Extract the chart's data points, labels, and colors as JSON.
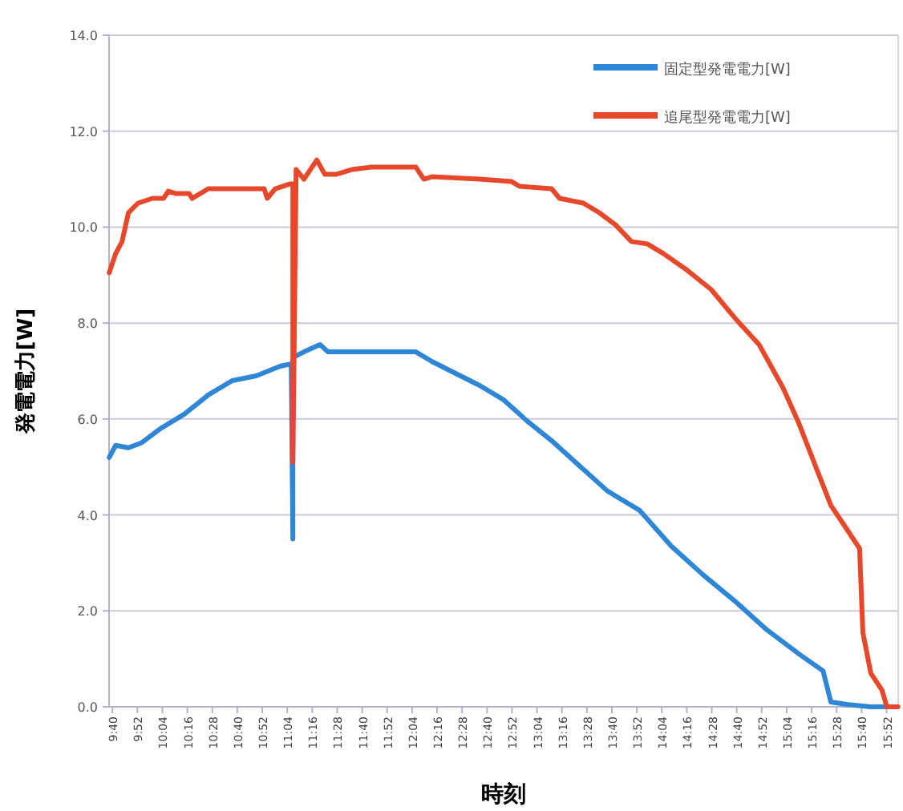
{
  "chart_data": {
    "type": "line",
    "xlabel": "時刻",
    "ylabel": "発電電力[W]",
    "legend": "top right",
    "grid": "y",
    "line_style": "solid",
    "xlim": [
      9.64,
      15.96
    ],
    "ylim": [
      0,
      14
    ],
    "yticks": [
      {
        "value": 0,
        "label": "0.0"
      },
      {
        "value": 2,
        "label": "2.0"
      },
      {
        "value": 4,
        "label": "4.0"
      },
      {
        "value": 6,
        "label": "6.0"
      },
      {
        "value": 8,
        "label": "8.0"
      },
      {
        "value": 10,
        "label": "10.0"
      },
      {
        "value": 12,
        "label": "12.0"
      },
      {
        "value": 14,
        "label": "14.0"
      }
    ],
    "xticks": [
      {
        "value": 9.667,
        "label": "9:40"
      },
      {
        "value": 9.867,
        "label": "9:52"
      },
      {
        "value": 10.067,
        "label": "10:04"
      },
      {
        "value": 10.267,
        "label": "10:16"
      },
      {
        "value": 10.467,
        "label": "10:28"
      },
      {
        "value": 10.667,
        "label": "10:40"
      },
      {
        "value": 10.867,
        "label": "10:52"
      },
      {
        "value": 11.067,
        "label": "11:04"
      },
      {
        "value": 11.267,
        "label": "11:16"
      },
      {
        "value": 11.467,
        "label": "11:28"
      },
      {
        "value": 11.667,
        "label": "11:40"
      },
      {
        "value": 11.867,
        "label": "11:52"
      },
      {
        "value": 12.067,
        "label": "12:04"
      },
      {
        "value": 12.267,
        "label": "12:16"
      },
      {
        "value": 12.467,
        "label": "12:28"
      },
      {
        "value": 12.667,
        "label": "12:40"
      },
      {
        "value": 12.867,
        "label": "12:52"
      },
      {
        "value": 13.067,
        "label": "13:04"
      },
      {
        "value": 13.267,
        "label": "13:16"
      },
      {
        "value": 13.467,
        "label": "13:28"
      },
      {
        "value": 13.667,
        "label": "13:40"
      },
      {
        "value": 13.867,
        "label": "13:52"
      },
      {
        "value": 14.067,
        "label": "14:04"
      },
      {
        "value": 14.267,
        "label": "14:16"
      },
      {
        "value": 14.467,
        "label": "14:28"
      },
      {
        "value": 14.667,
        "label": "14:40"
      },
      {
        "value": 14.867,
        "label": "14:52"
      },
      {
        "value": 15.067,
        "label": "15:04"
      },
      {
        "value": 15.267,
        "label": "15:16"
      },
      {
        "value": 15.467,
        "label": "15:28"
      },
      {
        "value": 15.667,
        "label": "15:40"
      },
      {
        "value": 15.867,
        "label": "15:52"
      }
    ],
    "series": [
      {
        "name": "固定型発電電力[W]",
        "color": "#2e86d6",
        "x": [
          9.641,
          9.693,
          9.795,
          9.897,
          10.051,
          10.242,
          10.434,
          10.626,
          10.818,
          11.01,
          11.099,
          11.112,
          11.112,
          11.125,
          11.201,
          11.329,
          11.393,
          11.521,
          12.097,
          12.225,
          12.416,
          12.608,
          12.8,
          12.992,
          13.184,
          13.375,
          13.631,
          13.887,
          14.143,
          14.398,
          14.654,
          14.91,
          15.166,
          15.358,
          15.421,
          15.549,
          15.741,
          15.869
        ],
        "values": [
          5.2,
          5.45,
          5.4,
          5.5,
          5.8,
          6.1,
          6.5,
          6.8,
          6.9,
          7.1,
          7.15,
          3.5,
          7.2,
          7.3,
          7.4,
          7.55,
          7.4,
          7.4,
          7.4,
          7.2,
          6.95,
          6.7,
          6.4,
          5.95,
          5.55,
          5.1,
          4.5,
          4.1,
          3.35,
          2.75,
          2.2,
          1.6,
          1.1,
          0.75,
          0.1,
          0.05,
          0,
          0
        ]
      },
      {
        "name": "追尾型発電電力[W]",
        "color": "#e8482a",
        "x": [
          9.641,
          9.693,
          9.744,
          9.795,
          9.872,
          9.987,
          10.076,
          10.115,
          10.178,
          10.281,
          10.306,
          10.434,
          10.882,
          10.907,
          10.971,
          11.086,
          11.112,
          11.112,
          11.138,
          11.201,
          11.304,
          11.368,
          11.457,
          11.585,
          11.739,
          12.097,
          12.161,
          12.225,
          12.608,
          12.864,
          12.928,
          13.184,
          13.248,
          13.439,
          13.567,
          13.695,
          13.823,
          13.951,
          14.079,
          14.271,
          14.462,
          14.654,
          14.846,
          15.038,
          15.166,
          15.293,
          15.421,
          15.549,
          15.651,
          15.677,
          15.741,
          15.83,
          15.869,
          15.958
        ],
        "values": [
          9.05,
          9.45,
          9.7,
          10.3,
          10.5,
          10.6,
          10.6,
          10.75,
          10.7,
          10.7,
          10.6,
          10.8,
          10.8,
          10.6,
          10.8,
          10.9,
          10.9,
          5.1,
          11.2,
          11.0,
          11.4,
          11.1,
          11.1,
          11.2,
          11.25,
          11.25,
          11.0,
          11.05,
          11.0,
          10.95,
          10.85,
          10.8,
          10.6,
          10.5,
          10.3,
          10.05,
          9.7,
          9.65,
          9.45,
          9.1,
          8.7,
          8.1,
          7.55,
          6.65,
          5.9,
          5.05,
          4.2,
          3.7,
          3.3,
          1.55,
          0.7,
          0.35,
          0,
          0
        ]
      }
    ]
  }
}
